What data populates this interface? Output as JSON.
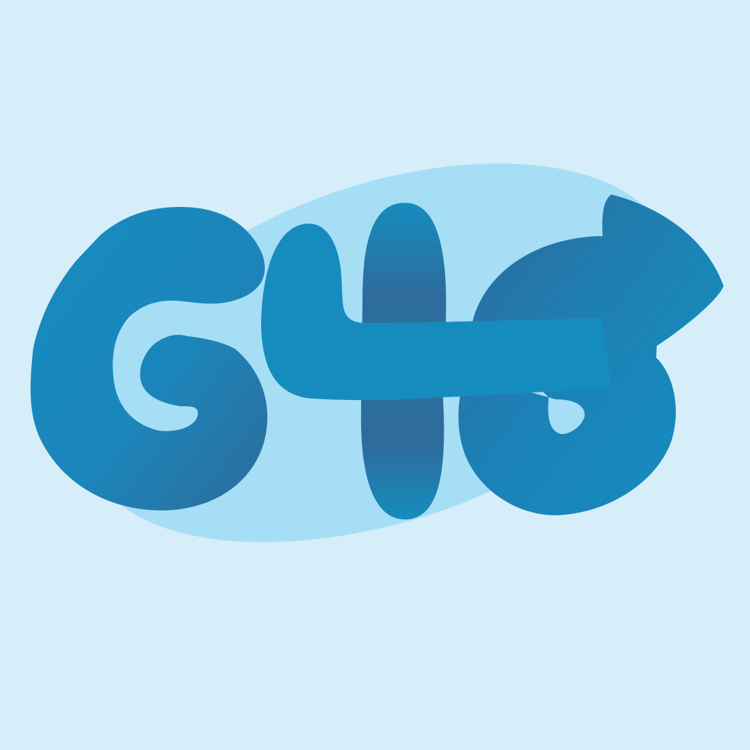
{
  "logo": {
    "wordmark": "GTS",
    "arrow_icon": "right-arrow-icon"
  },
  "colors": {
    "background": "#d6eef9",
    "blob": "#a6def6",
    "primary": "#168cbe",
    "shadow": "#2e6f9d"
  }
}
